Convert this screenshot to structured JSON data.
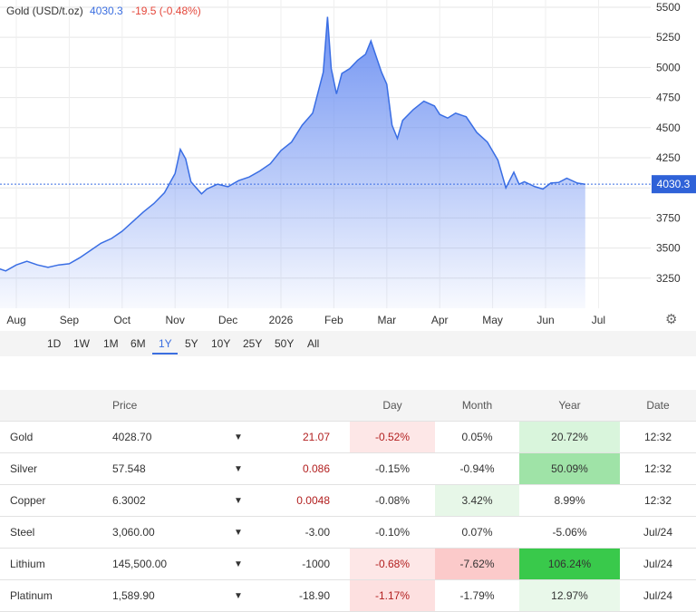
{
  "header": {
    "name": "Gold (USD/t.oz)",
    "price": "4030.3",
    "change": "-19.5 (-0.48%)"
  },
  "chart_data": {
    "type": "area",
    "title": "Gold (USD/t.oz)",
    "x_tick_labels": [
      "Aug",
      "Sep",
      "Oct",
      "Nov",
      "Dec",
      "2026",
      "Feb",
      "Mar",
      "Apr",
      "May",
      "Jun",
      "Jul"
    ],
    "y_tick_labels": [
      "5500",
      "5250",
      "5000",
      "4750",
      "4500",
      "4250",
      "4000",
      "3750",
      "3500",
      "3250"
    ],
    "y_ticks": [
      5500,
      5250,
      5000,
      4750,
      4500,
      4250,
      4000,
      3750,
      3500,
      3250
    ],
    "ylim": [
      3000,
      5560
    ],
    "last_value": 4030.3,
    "last_label": "4030.3",
    "grid": true,
    "line_color": "#3a6ee4",
    "fill_color": "#6f92f2",
    "x_months": [
      "2025-08",
      "2025-09",
      "2025-10",
      "2025-11",
      "2025-12",
      "2026-01",
      "2026-02",
      "2026-03",
      "2026-04",
      "2026-05",
      "2026-06",
      "2026-07"
    ],
    "series": [
      {
        "values": [
          [
            -0.4,
            3340
          ],
          [
            -0.2,
            3310
          ],
          [
            0.0,
            3360
          ],
          [
            0.2,
            3390
          ],
          [
            0.4,
            3360
          ],
          [
            0.6,
            3340
          ],
          [
            0.8,
            3360
          ],
          [
            1.0,
            3370
          ],
          [
            1.2,
            3420
          ],
          [
            1.4,
            3480
          ],
          [
            1.6,
            3540
          ],
          [
            1.8,
            3580
          ],
          [
            2.0,
            3640
          ],
          [
            2.2,
            3720
          ],
          [
            2.4,
            3800
          ],
          [
            2.6,
            3870
          ],
          [
            2.8,
            3960
          ],
          [
            3.0,
            4120
          ],
          [
            3.1,
            4320
          ],
          [
            3.2,
            4240
          ],
          [
            3.3,
            4050
          ],
          [
            3.4,
            4000
          ],
          [
            3.5,
            3950
          ],
          [
            3.6,
            3990
          ],
          [
            3.8,
            4030
          ],
          [
            4.0,
            4010
          ],
          [
            4.2,
            4060
          ],
          [
            4.4,
            4090
          ],
          [
            4.6,
            4140
          ],
          [
            4.8,
            4200
          ],
          [
            5.0,
            4310
          ],
          [
            5.2,
            4380
          ],
          [
            5.4,
            4520
          ],
          [
            5.6,
            4620
          ],
          [
            5.8,
            4960
          ],
          [
            5.88,
            5420
          ],
          [
            5.95,
            4990
          ],
          [
            6.05,
            4780
          ],
          [
            6.15,
            4950
          ],
          [
            6.3,
            4990
          ],
          [
            6.45,
            5060
          ],
          [
            6.6,
            5110
          ],
          [
            6.7,
            5220
          ],
          [
            6.8,
            5090
          ],
          [
            6.9,
            4960
          ],
          [
            7.0,
            4860
          ],
          [
            7.1,
            4520
          ],
          [
            7.2,
            4410
          ],
          [
            7.3,
            4560
          ],
          [
            7.5,
            4650
          ],
          [
            7.7,
            4720
          ],
          [
            7.9,
            4680
          ],
          [
            8.0,
            4610
          ],
          [
            8.15,
            4580
          ],
          [
            8.3,
            4620
          ],
          [
            8.5,
            4590
          ],
          [
            8.7,
            4460
          ],
          [
            8.9,
            4380
          ],
          [
            9.1,
            4230
          ],
          [
            9.25,
            4000
          ],
          [
            9.4,
            4130
          ],
          [
            9.5,
            4030
          ],
          [
            9.6,
            4050
          ],
          [
            9.8,
            4010
          ],
          [
            9.95,
            3990
          ],
          [
            10.1,
            4040
          ],
          [
            10.25,
            4045
          ],
          [
            10.4,
            4080
          ],
          [
            10.6,
            4040
          ],
          [
            10.75,
            4030
          ]
        ]
      }
    ]
  },
  "time_ranges": [
    "1D",
    "1W",
    "1M",
    "6M",
    "1Y",
    "5Y",
    "10Y",
    "25Y",
    "50Y",
    "All"
  ],
  "active_range": "1Y",
  "table": {
    "headers": {
      "name": "",
      "price": "Price",
      "arrow": "",
      "change": "",
      "day": "Day",
      "month": "Month",
      "year": "Year",
      "date": "Date"
    },
    "rows": [
      {
        "name": "Gold",
        "price": "4028.70",
        "change": "21.07",
        "day": "-0.52%",
        "month": "0.05%",
        "year": "20.72%",
        "date": "12:32",
        "change_color": "#b21f1f",
        "day_bg": "#fde7e7",
        "month_bg": "",
        "year_bg": "#d9f5dc"
      },
      {
        "name": "Silver",
        "price": "57.548",
        "change": "0.086",
        "day": "-0.15%",
        "month": "-0.94%",
        "year": "50.09%",
        "date": "12:32",
        "change_color": "#b21f1f",
        "day_bg": "",
        "month_bg": "",
        "year_bg": "#9fe3a7"
      },
      {
        "name": "Copper",
        "price": "6.3002",
        "change": "0.0048",
        "day": "-0.08%",
        "month": "3.42%",
        "year": "8.99%",
        "date": "12:32",
        "change_color": "#b21f1f",
        "day_bg": "",
        "month_bg": "#e7f7e8",
        "year_bg": ""
      },
      {
        "name": "Steel",
        "price": "3,060.00",
        "change": "-3.00",
        "day": "-0.10%",
        "month": "0.07%",
        "year": "-5.06%",
        "date": "Jul/24",
        "change_color": "#333333",
        "day_bg": "",
        "month_bg": "",
        "year_bg": ""
      },
      {
        "name": "Lithium",
        "price": "145,500.00",
        "change": "-1000",
        "day": "-0.68%",
        "month": "-7.62%",
        "year": "106.24%",
        "date": "Jul/24",
        "change_color": "#333333",
        "day_bg": "#fde7e7",
        "month_bg": "#fbcaca",
        "year_bg": "#39c94b"
      },
      {
        "name": "Platinum",
        "price": "1,589.90",
        "change": "-18.90",
        "day": "-1.17%",
        "month": "-1.79%",
        "year": "12.97%",
        "date": "Jul/24",
        "change_color": "#333333",
        "day_bg": "#fde0e0",
        "month_bg": "",
        "year_bg": "#e9f8ea"
      }
    ]
  }
}
